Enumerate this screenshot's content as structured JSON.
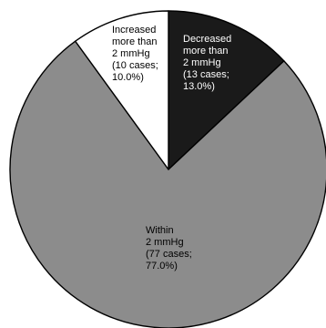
{
  "chart_data": {
    "type": "pie",
    "title": "",
    "start_angle_deg": 0,
    "direction": "clockwise",
    "slices": [
      {
        "label": "Decreased more than 2 mmHg",
        "cases": 13,
        "value": 13.0,
        "unit": "%",
        "color": "#1a1a1a",
        "text_color": "#ffffff",
        "label_lines": [
          "Decreased",
          "more than",
          "2 mmHg",
          "(13 cases;",
          "13.0%)"
        ]
      },
      {
        "label": "Within 2 mmHg",
        "cases": 77,
        "value": 77.0,
        "unit": "%",
        "color": "#8c8c8c",
        "text_color": "#000000",
        "label_lines": [
          "Within",
          "2 mmHg",
          "(77 cases;",
          "77.0%)"
        ]
      },
      {
        "label": "Increased more than 2 mmHg",
        "cases": 10,
        "value": 10.0,
        "unit": "%",
        "color": "#ffffff",
        "text_color": "#000000",
        "label_lines": [
          "Increased",
          "more than",
          "2 mmHg",
          "(10 cases;",
          "10.0%)"
        ]
      }
    ]
  }
}
